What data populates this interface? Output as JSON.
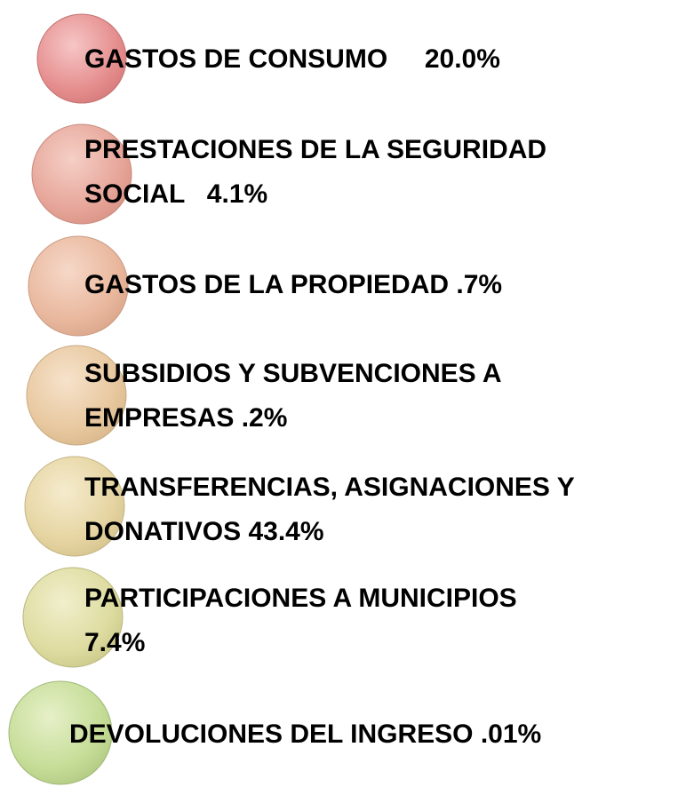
{
  "items": [
    {
      "lines": [
        "GASTOS DE CONSUMO     20.0%"
      ]
    },
    {
      "lines": [
        "PRESTACIONES DE LA SEGURIDAD",
        "SOCIAL   4.1%"
      ]
    },
    {
      "lines": [
        "GASTOS DE LA PROPIEDAD .7%"
      ]
    },
    {
      "lines": [
        "SUBSIDIOS Y SUBVENCIONES A",
        "EMPRESAS .2%"
      ]
    },
    {
      "lines": [
        "TRANSFERENCIAS, ASIGNACIONES Y",
        "DONATIVOS 43.4%"
      ]
    },
    {
      "lines": [
        "PARTICIPACIONES A MUNICIPIOS",
        "7.4%"
      ]
    },
    {
      "lines": [
        "DEVOLUCIONES DEL INGRESO .01%"
      ]
    }
  ]
}
